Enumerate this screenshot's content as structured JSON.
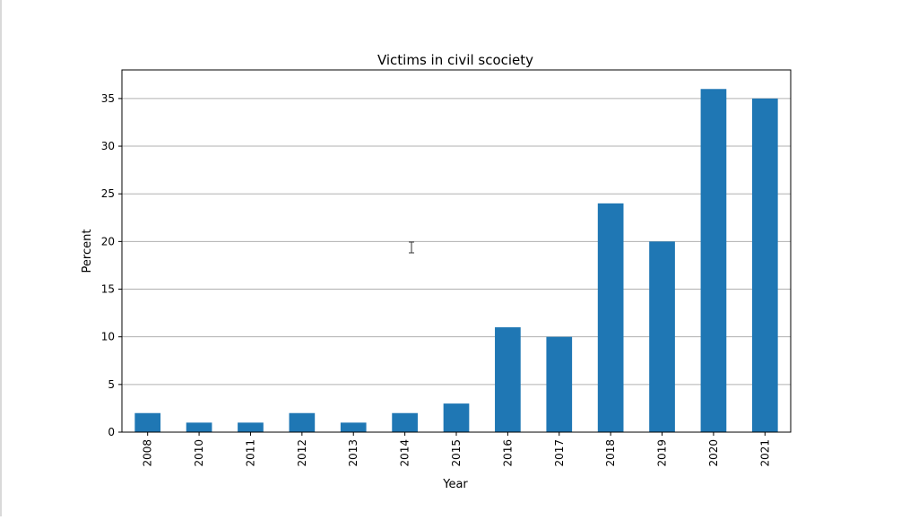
{
  "chart_data": {
    "type": "bar",
    "title": "Victims in civil scociety",
    "xlabel": "Year",
    "ylabel": "Percent",
    "categories": [
      "2008",
      "2010",
      "2011",
      "2012",
      "2013",
      "2014",
      "2015",
      "2016",
      "2017",
      "2018",
      "2019",
      "2020",
      "2021"
    ],
    "values": [
      2,
      1,
      1,
      2,
      1,
      2,
      3,
      11,
      10,
      24,
      20,
      36,
      35
    ],
    "ylim": [
      0,
      38
    ],
    "yticks": [
      0,
      5,
      10,
      15,
      20,
      25,
      30,
      35
    ],
    "grid": "horizontal",
    "bar_color": "#1f77b4",
    "x_tick_rotation": 90
  }
}
